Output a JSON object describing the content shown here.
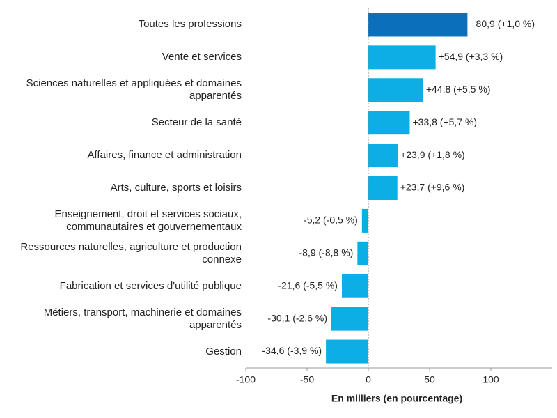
{
  "chart_data": {
    "type": "bar",
    "orientation": "horizontal",
    "categories": [
      "Toutes les professions",
      "Vente et services",
      "Sciences naturelles et appliquées et domaines apparentés",
      "Secteur de la santé",
      "Affaires, finance et administration",
      "Arts, culture, sports et loisirs",
      "Enseignement, droit et services sociaux, communautaires et gouvernementaux",
      "Ressources naturelles, agriculture et production connexe",
      "Fabrication et services d'utilité publique",
      "Métiers, transport, machinerie et domaines apparentés",
      "Gestion"
    ],
    "values": [
      80.9,
      54.9,
      44.8,
      33.8,
      23.9,
      23.7,
      -5.2,
      -8.9,
      -21.6,
      -30.1,
      -34.6
    ],
    "value_labels": [
      "+80,9 (+1,0 %)",
      "+54,9 (+3,3 %)",
      "+44,8 (+5,5 %)",
      "+33,8 (+5,7 %)",
      "+23,9 (+1,8 %)",
      "+23,7 (+9,6 %)",
      "-5,2 (-0,5 %)",
      "-8,9 (-8,8 %)",
      "-21,6 (-5,5 %)",
      "-30,1 (-2,6 %)",
      "-34,6 (-3,9 %)"
    ],
    "colors": [
      "#0b6fbb",
      "#0bafe6",
      "#0bafe6",
      "#0bafe6",
      "#0bafe6",
      "#0bafe6",
      "#0bafe6",
      "#0bafe6",
      "#0bafe6",
      "#0bafe6",
      "#0bafe6"
    ],
    "xlim": [
      -100,
      150
    ],
    "xticks": [
      -100,
      -50,
      0,
      50,
      100
    ],
    "x_label": "En milliers (en pourcentage)"
  }
}
